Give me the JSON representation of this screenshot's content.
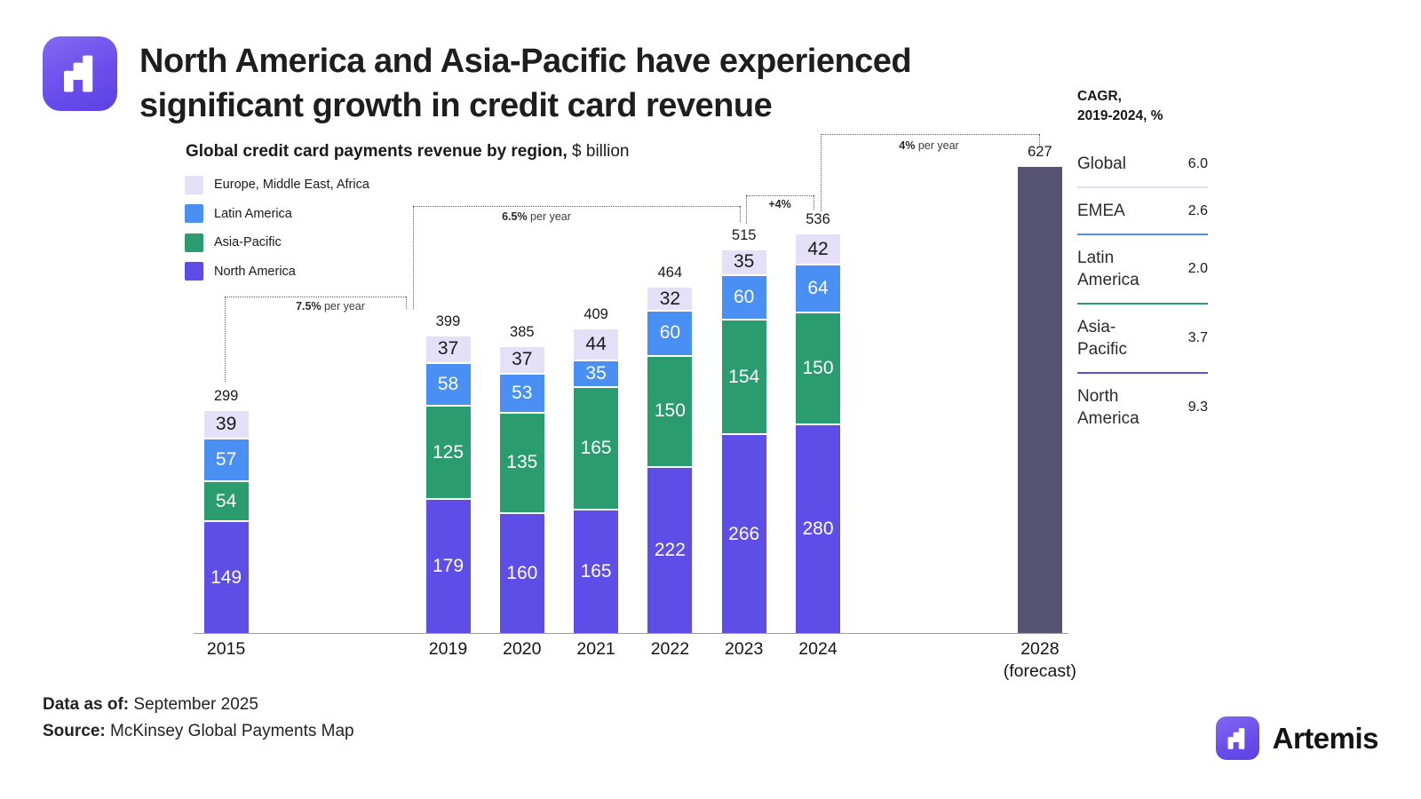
{
  "header": {
    "title_line1": "North America and Asia-Pacific have experienced",
    "title_line2": "significant growth in credit card revenue"
  },
  "chart": {
    "subtitle_bold": "Global credit card payments revenue by region,",
    "subtitle_regular": " $ billion"
  },
  "legend": {
    "items": [
      {
        "label": "Europe, Middle East, Africa",
        "color": "#E4E0F8"
      },
      {
        "label": "Latin America",
        "color": "#4A90F4"
      },
      {
        "label": "Asia-Pacific",
        "color": "#2B9B70"
      },
      {
        "label": "North America",
        "color": "#5F4DE8"
      }
    ]
  },
  "chart_data": {
    "type": "stacked-bar",
    "title": "Global credit card payments revenue by region",
    "unit": "$ billion",
    "categories": [
      "2015",
      "2019",
      "2020",
      "2021",
      "2022",
      "2023",
      "2024",
      "2028 (forecast)"
    ],
    "series": [
      {
        "name": "North America",
        "color": "#5F4DE8",
        "label_color": "#ffffff",
        "values": [
          149,
          179,
          160,
          165,
          222,
          266,
          280,
          null
        ]
      },
      {
        "name": "Asia-Pacific",
        "color": "#2B9B70",
        "label_color": "#ffffff",
        "values": [
          54,
          125,
          135,
          165,
          150,
          154,
          150,
          null
        ]
      },
      {
        "name": "Latin America",
        "color": "#4A90F4",
        "label_color": "#ffffff",
        "values": [
          57,
          58,
          53,
          35,
          60,
          60,
          64,
          null
        ]
      },
      {
        "name": "Europe, Middle East, Africa",
        "color": "#E4E0F8",
        "label_color": "#1b1b1b",
        "values": [
          39,
          37,
          37,
          44,
          32,
          35,
          42,
          null
        ]
      }
    ],
    "totals": [
      299,
      399,
      385,
      409,
      464,
      515,
      536,
      627
    ],
    "forecast": {
      "category": "2028 (forecast)",
      "total": 627,
      "color": "#575373"
    },
    "annotations": [
      {
        "label": "7.5% per year",
        "from": "2015",
        "to": "2019"
      },
      {
        "label": "6.5% per year",
        "from": "2019",
        "to": "2023"
      },
      {
        "label": "+4%",
        "from": "2023",
        "to": "2024"
      },
      {
        "label": "4% per year",
        "from": "2024",
        "to": "2028"
      }
    ],
    "ylim": [
      0,
      660
    ],
    "grid": false,
    "legend_position": "top-left"
  },
  "cagr": {
    "title_line1": "CAGR,",
    "title_line2": "2019-2024, %",
    "rows": [
      {
        "label": "Global",
        "value": "6.0",
        "divider_color": null
      },
      {
        "label": "EMEA",
        "value": "2.6",
        "divider_color": "#E4E0F8"
      },
      {
        "label": "Latin America",
        "value": "2.0",
        "divider_color": "#4A90F4"
      },
      {
        "label": "Asia-Pacific",
        "value": "3.7",
        "divider_color": "#2B9B70"
      },
      {
        "label": "North America",
        "value": "9.3",
        "divider_color": "#5F4DE8"
      }
    ]
  },
  "footer": {
    "data_as_of_label": "Data as of:",
    "data_as_of_value": " September 2025",
    "source_label": "Source:",
    "source_value": " McKinsey Global Payments Map"
  },
  "brand": {
    "name": "Artemis"
  }
}
